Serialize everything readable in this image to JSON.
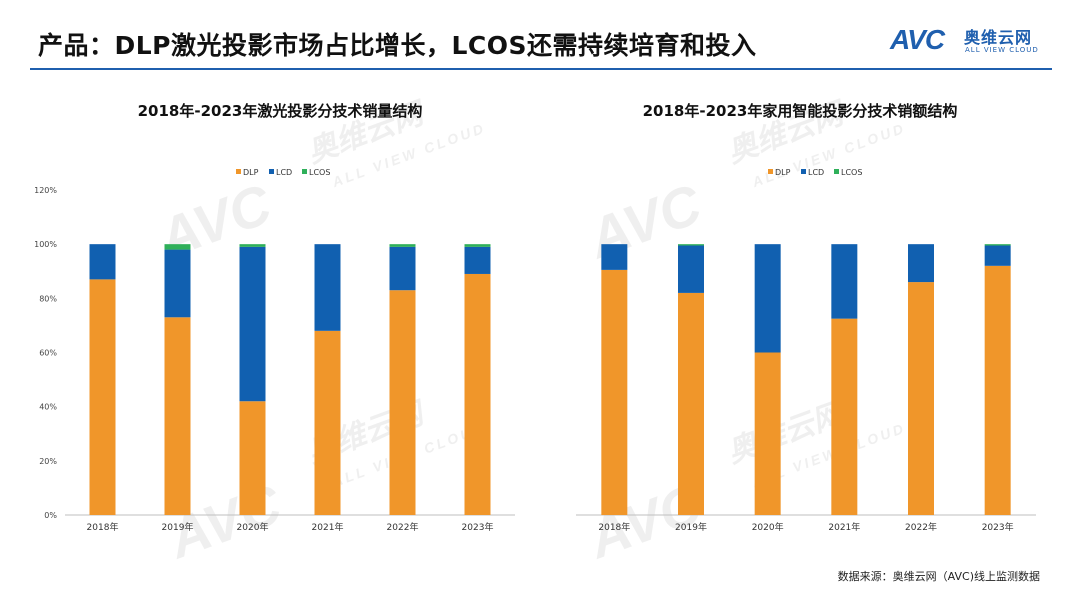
{
  "header": {
    "title": "产品：DLP激光投影市场占比增长，LCOS还需持续培育和投入",
    "logo_mark": "AVC",
    "logo_cn": "奥维云网",
    "logo_en": "ALL VIEW CLOUD"
  },
  "watermark": {
    "mark": "AVC",
    "cn": "奥维云网",
    "en": "ALL VIEW CLOUD"
  },
  "colors": {
    "DLP": "#f0962a",
    "LCD": "#1160b0",
    "LCOS": "#2fb05a",
    "accent": "#1f5fae"
  },
  "chart_data": [
    {
      "type": "bar",
      "stacked": true,
      "title": "2018年-2023年激光投影分技术销量结构",
      "categories": [
        "2018年",
        "2019年",
        "2020年",
        "2021年",
        "2022年",
        "2023年"
      ],
      "series": [
        {
          "name": "DLP",
          "values": [
            87,
            73,
            42,
            68,
            83,
            89
          ]
        },
        {
          "name": "LCD",
          "values": [
            13,
            25,
            57,
            32,
            16,
            10
          ]
        },
        {
          "name": "LCOS",
          "values": [
            0,
            2,
            1,
            0,
            1,
            1
          ]
        }
      ],
      "ylim": [
        0,
        120
      ],
      "yticks": [
        "0%",
        "20%",
        "40%",
        "60%",
        "80%",
        "100%",
        "120%"
      ],
      "legend": "top"
    },
    {
      "type": "bar",
      "stacked": true,
      "title": "2018年-2023年家用智能投影分技术销额结构",
      "categories": [
        "2018年",
        "2019年",
        "2020年",
        "2021年",
        "2022年",
        "2023年"
      ],
      "series": [
        {
          "name": "DLP",
          "values": [
            90.5,
            82,
            60,
            72.5,
            86,
            92
          ]
        },
        {
          "name": "LCD",
          "values": [
            9.5,
            17.5,
            40,
            27.5,
            14,
            7.5
          ]
        },
        {
          "name": "LCOS",
          "values": [
            0,
            0.5,
            0,
            0,
            0,
            0.5
          ]
        }
      ],
      "ylim": [
        0,
        120
      ],
      "yticks": [],
      "legend": "top"
    }
  ],
  "footer": {
    "source": "数据来源：奥维云网（AVC)线上监测数据"
  }
}
